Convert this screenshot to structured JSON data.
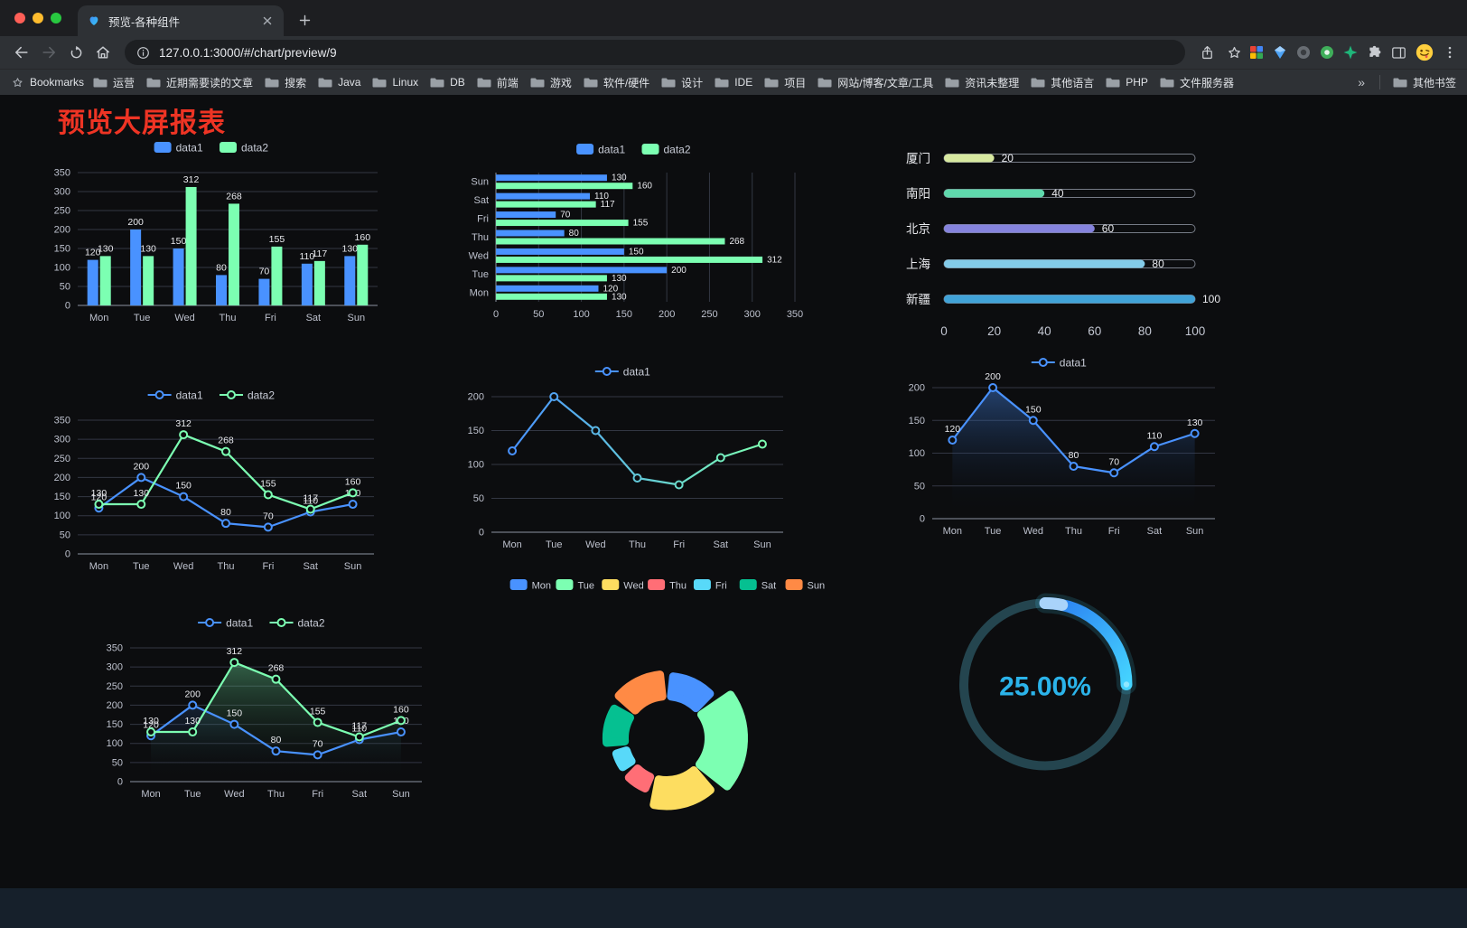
{
  "browser": {
    "tab_title": "预览-各种组件",
    "url": "127.0.0.1:3000/#/chart/preview/9",
    "bookmarks_label": "Bookmarks",
    "bookmark_folders": [
      "运营",
      "近期需要读的文章",
      "搜索",
      "Java",
      "Linux",
      "DB",
      "前端",
      "游戏",
      "软件/硬件",
      "设计",
      "IDE",
      "项目",
      "网站/博客/文章/工具",
      "资讯未整理",
      "其他语言",
      "PHP",
      "文件服务器"
    ],
    "overflow_chevron": "»",
    "other_bookmarks": "其他书签"
  },
  "page": {
    "title": "预览大屏报表",
    "title_color": "#ee3424"
  },
  "colors": {
    "data1": "#4992ff",
    "data2": "#7cffb2",
    "background": "#0c0d0f"
  },
  "chart_data": [
    {
      "name": "grouped-bar",
      "type": "bar",
      "categories": [
        "Mon",
        "Tue",
        "Wed",
        "Thu",
        "Fri",
        "Sat",
        "Sun"
      ],
      "series": [
        {
          "name": "data1",
          "color": "#4992ff",
          "values": [
            120,
            200,
            150,
            80,
            70,
            110,
            130
          ]
        },
        {
          "name": "data2",
          "color": "#7cffb2",
          "values": [
            130,
            130,
            312,
            268,
            155,
            117,
            160
          ]
        }
      ],
      "ylim": [
        0,
        350
      ],
      "yticks": [
        0,
        50,
        100,
        150,
        200,
        250,
        300,
        350
      ],
      "legend": [
        "data1",
        "data2"
      ],
      "value_labels": true
    },
    {
      "name": "grouped-bar-horizontal",
      "type": "bar-horizontal",
      "categories": [
        "Mon",
        "Tue",
        "Wed",
        "Thu",
        "Fri",
        "Sat",
        "Sun"
      ],
      "series": [
        {
          "name": "data1",
          "color": "#4992ff",
          "values": [
            120,
            200,
            150,
            80,
            70,
            110,
            130
          ]
        },
        {
          "name": "data2",
          "color": "#7cffb2",
          "values": [
            130,
            130,
            312,
            268,
            155,
            117,
            160
          ]
        }
      ],
      "xlim": [
        0,
        350
      ],
      "xticks": [
        0,
        50,
        100,
        150,
        200,
        250,
        300,
        350
      ],
      "legend": [
        "data1",
        "data2"
      ],
      "value_labels": true
    },
    {
      "name": "progress-list",
      "type": "progress",
      "max": 100,
      "xticks": [
        0,
        20,
        40,
        60,
        80,
        100
      ],
      "items": [
        {
          "label": "厦门",
          "value": 20,
          "color": "#d8e9a0"
        },
        {
          "label": "南阳",
          "value": 40,
          "color": "#5fd8ac"
        },
        {
          "label": "北京",
          "value": 60,
          "color": "#8583dd"
        },
        {
          "label": "上海",
          "value": 80,
          "color": "#83cbe8"
        },
        {
          "label": "新疆",
          "value": 100,
          "color": "#41a3d8"
        }
      ]
    },
    {
      "name": "dual-line",
      "type": "line",
      "categories": [
        "Mon",
        "Tue",
        "Wed",
        "Thu",
        "Fri",
        "Sat",
        "Sun"
      ],
      "series": [
        {
          "name": "data1",
          "color": "#4992ff",
          "values": [
            120,
            200,
            150,
            80,
            70,
            110,
            130
          ],
          "labels": true
        },
        {
          "name": "data2",
          "color": "#7cffb2",
          "values": [
            130,
            130,
            312,
            268,
            155,
            117,
            160
          ],
          "labels": true
        }
      ],
      "ylim": [
        0,
        350
      ],
      "yticks": [
        0,
        50,
        100,
        150,
        200,
        250,
        300,
        350
      ]
    },
    {
      "name": "gradient-line",
      "type": "line",
      "categories": [
        "Mon",
        "Tue",
        "Wed",
        "Thu",
        "Fri",
        "Sat",
        "Sun"
      ],
      "gradient": [
        "#4992ff",
        "#7cffb2"
      ],
      "series": [
        {
          "name": "data1",
          "color": "#4992ff",
          "values": [
            120,
            200,
            150,
            80,
            70,
            110,
            130
          ],
          "labels": false
        }
      ],
      "ylim": [
        0,
        200
      ],
      "yticks": [
        0,
        50,
        100,
        150,
        200
      ]
    },
    {
      "name": "area-line",
      "type": "line",
      "categories": [
        "Mon",
        "Tue",
        "Wed",
        "Thu",
        "Fri",
        "Sat",
        "Sun"
      ],
      "series": [
        {
          "name": "data1",
          "color": "#4992ff",
          "values": [
            120,
            200,
            150,
            80,
            70,
            110,
            130
          ],
          "labels": true,
          "area": "rgba(73,146,255,0.40)"
        }
      ],
      "ylim": [
        0,
        200
      ],
      "yticks": [
        0,
        50,
        100,
        150,
        200
      ]
    },
    {
      "name": "dual-line-area",
      "type": "line",
      "categories": [
        "Mon",
        "Tue",
        "Wed",
        "Thu",
        "Fri",
        "Sat",
        "Sun"
      ],
      "series": [
        {
          "name": "data1",
          "color": "#4992ff",
          "values": [
            120,
            200,
            150,
            80,
            70,
            110,
            130
          ],
          "labels": true,
          "area": "rgba(73,146,255,0.15)"
        },
        {
          "name": "data2",
          "color": "#7cffb2",
          "values": [
            130,
            130,
            312,
            268,
            155,
            117,
            160
          ],
          "labels": true,
          "area": "rgba(124,255,178,0.35)"
        }
      ],
      "ylim": [
        0,
        350
      ],
      "yticks": [
        0,
        50,
        100,
        150,
        200,
        250,
        300,
        350
      ]
    },
    {
      "name": "donut",
      "type": "donut",
      "categories": [
        "Mon",
        "Tue",
        "Wed",
        "Thu",
        "Fri",
        "Sat",
        "Sun"
      ],
      "values": [
        120,
        200,
        150,
        80,
        70,
        110,
        130
      ],
      "colors": [
        "#4992ff",
        "#7cffb2",
        "#fddd60",
        "#ff6e76",
        "#58d9f9",
        "#05c091",
        "#ff8a45"
      ]
    },
    {
      "name": "gauge",
      "type": "gauge",
      "value": 25,
      "label": "25.00%",
      "ring_color": "#24454f",
      "arc_colors": [
        "#2a7cf0",
        "#45d4ff"
      ],
      "text_color": "#2bb3ea"
    }
  ]
}
